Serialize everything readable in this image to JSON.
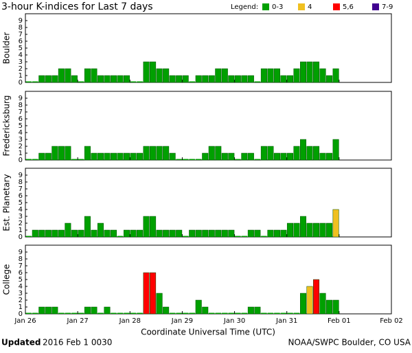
{
  "title": "3-hour K-indices for Last 7 days",
  "legend": {
    "title": "Legend:",
    "items": [
      {
        "label": "0-3",
        "color": "#00a000",
        "range": [
          0,
          3
        ]
      },
      {
        "label": "4",
        "color": "#f0c020",
        "range": [
          4,
          4
        ]
      },
      {
        "label": "5,6",
        "color": "#ff0000",
        "range": [
          5,
          6
        ]
      },
      {
        "label": "7-9",
        "color": "#400090",
        "range": [
          7,
          9
        ]
      }
    ]
  },
  "x_axis": {
    "label": "Coordinate Universal Time (UTC)",
    "xlim": [
      0,
      56
    ],
    "xticks": [
      {
        "value": 0,
        "label": "Jan 26"
      },
      {
        "value": 8,
        "label": "Jan 27"
      },
      {
        "value": 16,
        "label": "Jan 28"
      },
      {
        "value": 24,
        "label": "Jan 29"
      },
      {
        "value": 32,
        "label": "Jan 30"
      },
      {
        "value": 40,
        "label": "Jan 31"
      },
      {
        "value": 48,
        "label": "Feb 01"
      },
      {
        "value": 56,
        "label": "Feb 02"
      }
    ]
  },
  "footer": {
    "updated_label": "Updated",
    "updated": "2016 Feb  1 0030",
    "source": "NOAA/SWPC Boulder, CO USA"
  },
  "chart_data": [
    {
      "type": "bar",
      "ylabel": "Boulder",
      "ylim": [
        0,
        10
      ],
      "yticks": [
        0,
        1,
        2,
        3,
        4,
        5,
        6,
        7,
        8,
        9
      ],
      "values": [
        0,
        0,
        1,
        1,
        1,
        2,
        2,
        1,
        0,
        2,
        2,
        1,
        1,
        1,
        1,
        1,
        0,
        0,
        3,
        3,
        2,
        2,
        1,
        1,
        1,
        0,
        1,
        1,
        1,
        2,
        2,
        1,
        1,
        1,
        1,
        0,
        2,
        2,
        2,
        1,
        1,
        2,
        3,
        3,
        3,
        2,
        1,
        2,
        null,
        null,
        null,
        null,
        null,
        null,
        null,
        null
      ]
    },
    {
      "type": "bar",
      "ylabel": "Fredericksburg",
      "ylim": [
        0,
        10
      ],
      "yticks": [
        0,
        1,
        2,
        3,
        4,
        5,
        6,
        7,
        8,
        9
      ],
      "values": [
        0,
        0,
        1,
        1,
        2,
        2,
        2,
        0,
        0,
        2,
        1,
        1,
        1,
        1,
        1,
        1,
        1,
        1,
        2,
        2,
        2,
        2,
        1,
        0,
        0,
        0,
        0,
        1,
        2,
        2,
        1,
        1,
        0,
        1,
        1,
        0,
        2,
        2,
        1,
        1,
        1,
        2,
        3,
        2,
        2,
        1,
        1,
        3,
        null,
        null,
        null,
        null,
        null,
        null,
        null,
        null
      ]
    },
    {
      "type": "bar",
      "ylabel": "Est. Planetary",
      "ylim": [
        0,
        10
      ],
      "yticks": [
        0,
        1,
        2,
        3,
        4,
        5,
        6,
        7,
        8,
        9
      ],
      "values": [
        0,
        1,
        1,
        1,
        1,
        1,
        2,
        1,
        1,
        3,
        1,
        2,
        1,
        1,
        0,
        1,
        1,
        1,
        3,
        3,
        1,
        1,
        1,
        1,
        0,
        1,
        1,
        1,
        1,
        1,
        1,
        1,
        0,
        0,
        1,
        1,
        0,
        1,
        1,
        1,
        2,
        2,
        3,
        2,
        2,
        2,
        2,
        4,
        null,
        null,
        null,
        null,
        null,
        null,
        null,
        null
      ]
    },
    {
      "type": "bar",
      "ylabel": "College",
      "ylim": [
        0,
        10
      ],
      "yticks": [
        0,
        1,
        2,
        3,
        4,
        5,
        6,
        7,
        8,
        9
      ],
      "values": [
        0,
        0,
        1,
        1,
        1,
        0,
        0,
        0,
        0,
        1,
        1,
        0,
        1,
        0,
        0,
        0,
        0,
        0,
        6,
        6,
        3,
        1,
        0,
        0,
        0,
        0,
        2,
        1,
        0,
        0,
        0,
        0,
        0,
        0,
        1,
        1,
        0,
        0,
        0,
        0,
        0,
        0,
        3,
        4,
        5,
        3,
        2,
        2,
        null,
        null,
        null,
        null,
        null,
        null,
        null,
        null
      ]
    }
  ]
}
